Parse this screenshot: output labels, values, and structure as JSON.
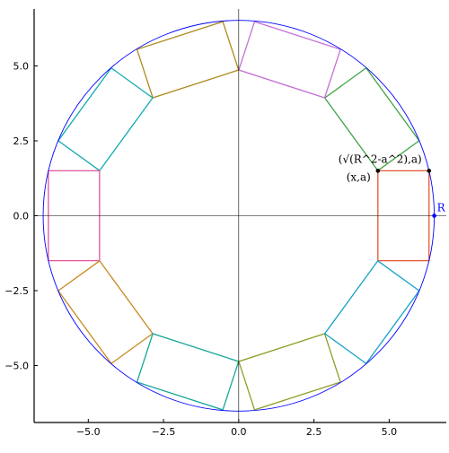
{
  "chart_data": {
    "type": "line",
    "title": "",
    "xlabel": "",
    "ylabel": "",
    "xlim": [
      -6.8,
      6.9
    ],
    "ylim": [
      -6.9,
      6.9
    ],
    "x_ticks": [
      -5,
      -2.5,
      0,
      2.5,
      5
    ],
    "y_ticks": [
      -5,
      -2.5,
      0,
      2.5,
      5
    ],
    "x_tick_labels": [
      "−5.0",
      "−2.5",
      "0.0",
      "2.5",
      "5.0"
    ],
    "y_tick_labels": [
      "−5.0",
      "−2.5",
      "0.0",
      "2.5",
      "5.0"
    ],
    "grid": false,
    "legend": "none",
    "circle": {
      "center": [
        0,
        0
      ],
      "radius": 6.5,
      "color": "#0000ff"
    },
    "rectangle": {
      "a": 1.5,
      "x": 4.626,
      "x_outer": 6.325,
      "count": 10,
      "colors": [
        "#e2592f",
        "#3ea442",
        "#c471d6",
        "#b08a1c",
        "#10aab0",
        "#e0559a",
        "#c88a20",
        "#16a69a",
        "#8c9e26",
        "#14a2c6"
      ]
    },
    "points": [
      {
        "x": 4.626,
        "y": 1.5,
        "color": "#000000"
      },
      {
        "x": 6.325,
        "y": 1.5,
        "color": "#000000"
      },
      {
        "x": 6.5,
        "y": 0,
        "color": "#0000ff"
      }
    ],
    "annotations": [
      {
        "text": "(√(R^2-a^2),a)",
        "x": 6.325,
        "y": 1.5
      },
      {
        "text": "(x,a)",
        "x": 4.626,
        "y": 1.5
      },
      {
        "text": "R",
        "x": 6.5,
        "y": 0
      }
    ]
  }
}
